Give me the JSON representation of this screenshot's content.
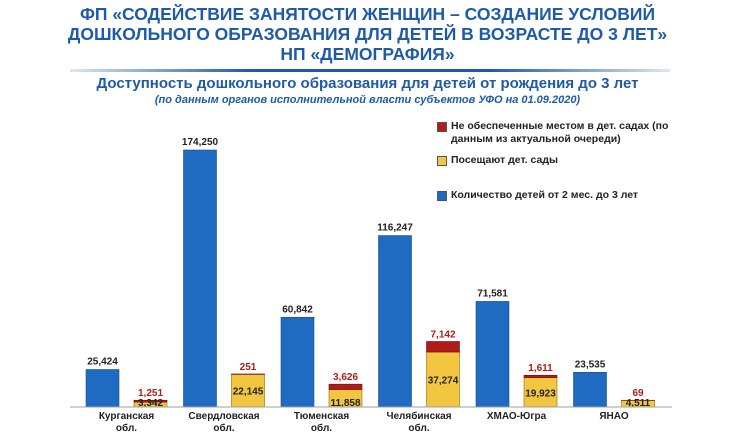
{
  "header": {
    "line1": "ФП «СОДЕЙСТВИЕ ЗАНЯТОСТИ ЖЕНЩИН – СОЗДАНИЕ УСЛОВИЙ",
    "line2": "ДОШКОЛЬНОГО ОБРАЗОВАНИЯ  ДЛЯ ДЕТЕЙ В ВОЗРАСТЕ ДО 3 ЛЕТ»",
    "line3": "НП «ДЕМОГРАФИЯ»"
  },
  "subtitle": "Доступность дошкольного образования для детей от рождения до 3 лет",
  "note": "(по данным органов исполнительной власти субъектов УФО на 01.09.2020)",
  "colors": {
    "blue": "#1f6bc1",
    "yellow": "#f2c641",
    "red": "#b01c1c"
  },
  "chart_data": {
    "type": "bar",
    "categories": [
      "Курганская обл.",
      "Свердловская обл.",
      "Тюменская обл.",
      "Челябинская обл.",
      "ХМАО-Югра",
      "ЯНАО"
    ],
    "category_lines": [
      [
        "Курганская",
        "обл."
      ],
      [
        "Свердловская",
        "обл."
      ],
      [
        "Тюменская",
        "обл."
      ],
      [
        "Челябинская",
        "обл."
      ],
      [
        "ХМАО-Югра"
      ],
      [
        "ЯНАО"
      ]
    ],
    "series": [
      {
        "name": "Количество детей от 2 мес. до 3 лет",
        "values": [
          25424,
          174250,
          60842,
          116247,
          71581,
          23535
        ],
        "labels": [
          "25,424",
          "174,250",
          "60,842",
          "116,247",
          "71,581",
          "23,535"
        ],
        "color": "#1f6bc1"
      },
      {
        "name": "Посещают дет. сады",
        "values": [
          3342,
          22145,
          11858,
          37274,
          19923,
          4511
        ],
        "labels": [
          "3,342",
          "22,145",
          "11,858",
          "37,274",
          "19,923",
          "4,511"
        ],
        "color": "#f2c641"
      },
      {
        "name": "Не обеспеченные местом в дет. садах (по данным из актуальной очереди)",
        "values": [
          1251,
          251,
          3626,
          7142,
          1611,
          69
        ],
        "labels": [
          "1,251",
          "251",
          "3,626",
          "7,142",
          "1,611",
          "69"
        ],
        "color": "#b01c1c"
      }
    ],
    "legend_order": [
      2,
      1,
      0
    ],
    "legend_position": "top-right",
    "grid": false
  }
}
